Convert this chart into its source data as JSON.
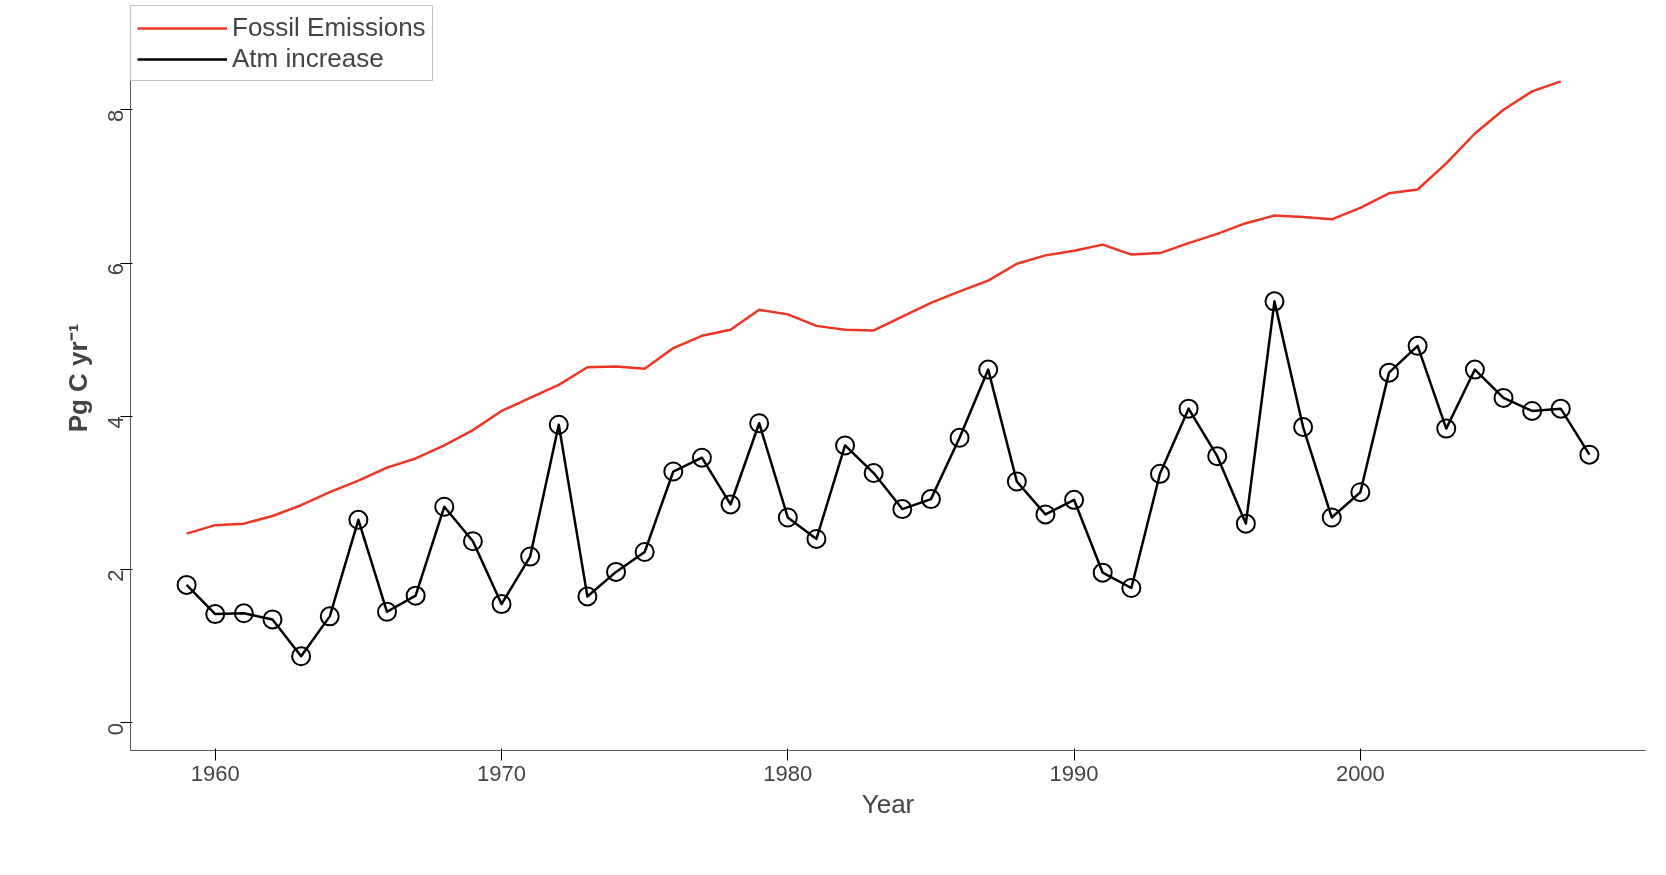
{
  "chart_data": {
    "type": "line",
    "xlabel": "Year",
    "ylabel": "Pg C yr⁻¹",
    "xlim": [
      1957.04,
      2009.96
    ],
    "ylim": [
      -0.36,
      9.36
    ],
    "xticks": [
      1960,
      1970,
      1980,
      1990,
      2000
    ],
    "yticks": [
      0,
      2,
      4,
      6,
      8
    ],
    "grid": false,
    "legend": "top left",
    "series": [
      {
        "name": "Fossil Emissions",
        "color": "#ee3524",
        "marker": "none",
        "x": [
          1959,
          1960,
          1961,
          1962,
          1963,
          1964,
          1965,
          1966,
          1967,
          1968,
          1969,
          1970,
          1971,
          1972,
          1973,
          1974,
          1975,
          1976,
          1977,
          1978,
          1979,
          1980,
          1981,
          1982,
          1983,
          1984,
          1985,
          1986,
          1987,
          1988,
          1989,
          1990,
          1991,
          1992,
          1993,
          1994,
          1995,
          1996,
          1997,
          1998,
          1999,
          2000,
          2001,
          2002,
          2003,
          2004,
          2005,
          2006,
          2007
        ],
        "values": [
          2.47,
          2.58,
          2.6,
          2.7,
          2.84,
          3.01,
          3.16,
          3.33,
          3.45,
          3.62,
          3.82,
          4.07,
          4.24,
          4.41,
          4.64,
          4.65,
          4.62,
          4.89,
          5.05,
          5.13,
          5.39,
          5.33,
          5.18,
          5.13,
          5.12,
          5.3,
          5.48,
          5.63,
          5.77,
          5.99,
          6.1,
          6.16,
          6.24,
          6.11,
          6.13,
          6.26,
          6.38,
          6.52,
          6.62,
          6.6,
          6.57,
          6.72,
          6.91,
          6.96,
          7.3,
          7.69,
          8.0,
          8.24,
          8.37
        ]
      },
      {
        "name": "Atm increase",
        "color": "#000000",
        "marker": "circle",
        "x": [
          1959,
          1960,
          1961,
          1962,
          1963,
          1964,
          1965,
          1966,
          1967,
          1968,
          1969,
          1970,
          1971,
          1972,
          1973,
          1974,
          1975,
          1976,
          1977,
          1978,
          1979,
          1980,
          1981,
          1982,
          1983,
          1984,
          1985,
          1986,
          1987,
          1988,
          1989,
          1990,
          1991,
          1992,
          1993,
          1994,
          1995,
          1996,
          1997,
          1998,
          1999,
          2000,
          2001,
          2002,
          2003,
          2004,
          2005,
          2006,
          2007,
          2008
        ],
        "values": [
          1.8,
          1.42,
          1.43,
          1.35,
          0.87,
          1.39,
          2.65,
          1.45,
          1.66,
          2.82,
          2.37,
          1.55,
          2.17,
          3.89,
          1.65,
          1.97,
          2.23,
          3.28,
          3.46,
          2.85,
          3.91,
          2.68,
          2.4,
          3.62,
          3.26,
          2.79,
          2.92,
          3.72,
          4.61,
          3.15,
          2.72,
          2.91,
          1.96,
          1.76,
          3.25,
          4.1,
          3.48,
          2.6,
          5.5,
          3.86,
          2.68,
          3.01,
          4.57,
          4.92,
          3.84,
          4.61,
          4.24,
          4.07,
          4.1,
          3.5
        ]
      }
    ]
  }
}
